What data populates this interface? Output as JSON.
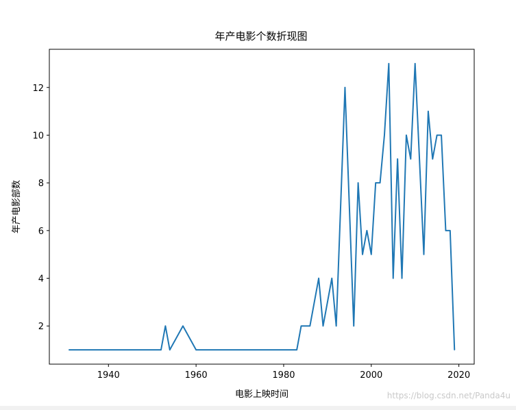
{
  "chart_data": {
    "type": "line",
    "title": "年产电影个数折现图",
    "xlabel": "电影上映时间",
    "ylabel": "年产电影部数",
    "xlim": [
      1926.5,
      2023.5
    ],
    "ylim": [
      0.4,
      13.6
    ],
    "xticks": [
      1940,
      1960,
      1980,
      2000,
      2020
    ],
    "yticks": [
      2,
      4,
      6,
      8,
      10,
      12
    ],
    "grid": false,
    "line_color": "#1f77b4",
    "x": [
      1931,
      1952,
      1953,
      1954,
      1957,
      1960,
      1983,
      1984,
      1986,
      1988,
      1989,
      1991,
      1992,
      1994,
      1996,
      1997,
      1998,
      1999,
      2000,
      2001,
      2002,
      2003,
      2004,
      2005,
      2006,
      2007,
      2008,
      2009,
      2010,
      2012,
      2013,
      2014,
      2015,
      2016,
      2017,
      2018,
      2019
    ],
    "y": [
      1,
      1,
      2,
      1,
      2,
      1,
      1,
      2,
      2,
      4,
      2,
      4,
      2,
      12,
      2,
      8,
      5,
      6,
      5,
      8,
      8,
      10,
      13,
      4,
      9,
      4,
      10,
      9,
      13,
      5,
      11,
      9,
      10,
      10,
      6,
      6,
      1
    ]
  },
  "watermark": "https://blog.csdn.net/Panda4u"
}
